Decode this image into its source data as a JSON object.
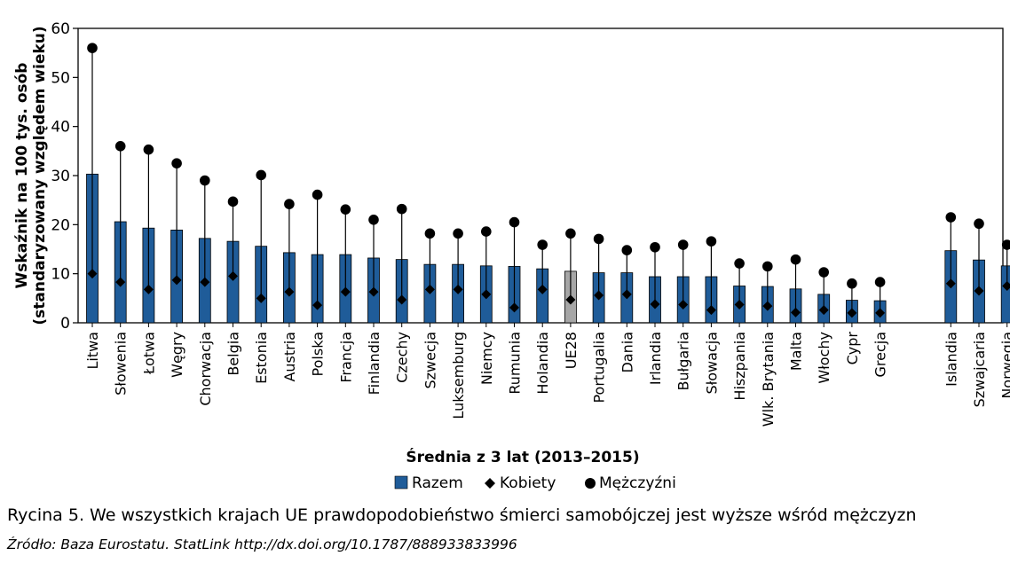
{
  "chart_data": {
    "type": "bar",
    "ylabel_line1": "Wskaźnik na 100 tys. osób",
    "ylabel_line2": "(standaryzowany względem wieku)",
    "xlabel": "Średnia z 3 lat (2013–2015)",
    "ylim": [
      0,
      60
    ],
    "yticks": [
      0,
      10,
      20,
      30,
      40,
      50,
      60
    ],
    "grid": false,
    "legend_position": "bottom-center",
    "colors": {
      "bar": "#1f5c99",
      "bar_highlight": "#a6a6a6",
      "marker": "#000000"
    },
    "series": [
      {
        "name": "Razem",
        "marker": "bar"
      },
      {
        "name": "Kobiety",
        "marker": "diamond"
      },
      {
        "name": "Mężczyźni",
        "marker": "circle"
      }
    ],
    "categories": [
      "Litwa",
      "Słowenia",
      "Łotwa",
      "Węgry",
      "Chorwacja",
      "Belgia",
      "Estonia",
      "Austria",
      "Polska",
      "Francja",
      "Finlandia",
      "Czechy",
      "Szwecja",
      "Luksemburg",
      "Niemcy",
      "Rumunia",
      "Holandia",
      "UE28",
      "Portugalia",
      "Dania",
      "Irlandia",
      "Bułgaria",
      "Słowacja",
      "Hiszpania",
      "Wlk. Brytania",
      "Malta",
      "Włochy",
      "Cypr",
      "Grecja",
      "Islandia",
      "Szwajcaria",
      "Norwegia"
    ],
    "highlight_category": "UE28",
    "razem": [
      30.3,
      20.6,
      19.3,
      18.9,
      17.2,
      16.6,
      15.6,
      14.3,
      13.9,
      13.9,
      13.2,
      12.9,
      11.9,
      11.9,
      11.6,
      11.5,
      11.0,
      10.5,
      10.2,
      10.2,
      9.4,
      9.4,
      9.4,
      7.5,
      7.4,
      6.9,
      5.8,
      4.6,
      4.5,
      14.7,
      12.8,
      11.6
    ],
    "kobiety": [
      10.0,
      8.3,
      6.8,
      8.7,
      8.3,
      9.5,
      5.0,
      6.3,
      3.6,
      6.3,
      6.3,
      4.7,
      6.8,
      6.8,
      5.8,
      3.1,
      6.8,
      4.7,
      5.6,
      5.8,
      3.8,
      3.7,
      2.6,
      3.7,
      3.4,
      2.1,
      2.6,
      2.0,
      2.0,
      8.0,
      6.5,
      7.5
    ],
    "mezczyzni": [
      56.0,
      36.0,
      35.3,
      32.5,
      29.0,
      24.7,
      30.1,
      24.2,
      26.1,
      23.1,
      21.0,
      23.2,
      18.2,
      18.2,
      18.6,
      20.5,
      15.9,
      18.2,
      17.1,
      14.8,
      15.4,
      15.9,
      16.6,
      12.1,
      11.5,
      12.9,
      10.3,
      8.0,
      8.3,
      21.5,
      20.2,
      15.9
    ]
  },
  "caption": {
    "label": "Rycina 5.",
    "text": "We wszystkich krajach UE prawdopodobieństwo śmierci samobójczej jest wyższe wśród mężczyzn"
  },
  "source": "Źródło: Baza Eurostatu. StatLink http://dx.doi.org/10.1787/888933833996"
}
